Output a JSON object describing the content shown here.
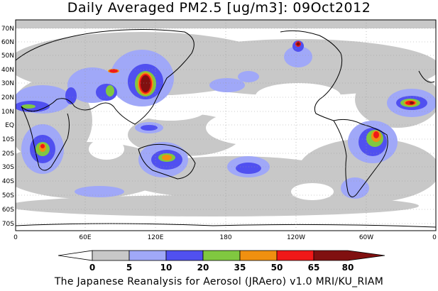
{
  "title": "Daily Averaged PM2.5 [ug/m3]: 09Oct2012",
  "footer": "The Japanese Reanalysis for Aerosol (JRAero) v1.0 MRI/KU_RIAM",
  "map": {
    "lat_labels": [
      "70N",
      "60N",
      "50N",
      "40N",
      "30N",
      "20N",
      "10N",
      "EQ",
      "10S",
      "20S",
      "30S",
      "40S",
      "50S",
      "60S",
      "70S"
    ],
    "lon_labels": [
      "0",
      "60E",
      "120E",
      "180",
      "120W",
      "60W",
      "0"
    ]
  },
  "legend": {
    "ticks": [
      "0",
      "5",
      "10",
      "20",
      "35",
      "50",
      "65",
      "80"
    ],
    "colors": [
      "#ffffff",
      "#c8c8c8",
      "#a0a8f8",
      "#5050f0",
      "#80c840",
      "#f09010",
      "#f01818",
      "#801010"
    ]
  }
}
